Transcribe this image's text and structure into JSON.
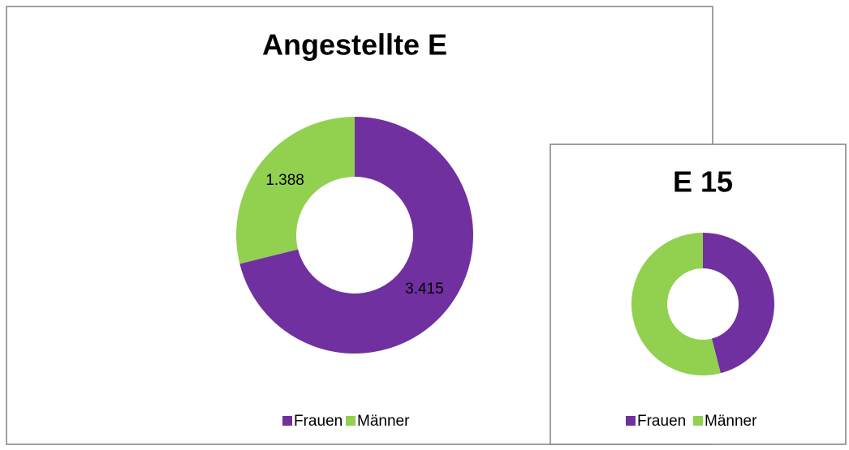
{
  "chart_data": [
    {
      "type": "donut",
      "title": "Angestellte E",
      "categories": [
        "Frauen",
        "Männer"
      ],
      "values": [
        3415,
        1388
      ],
      "value_labels": [
        "3.415",
        "1.388"
      ],
      "colors": [
        "#7030a0",
        "#92d050"
      ]
    },
    {
      "type": "donut",
      "title": "E 15",
      "categories": [
        "Frauen",
        "Männer"
      ],
      "values": [
        46,
        54
      ],
      "colors": [
        "#7030a0",
        "#92d050"
      ]
    }
  ]
}
